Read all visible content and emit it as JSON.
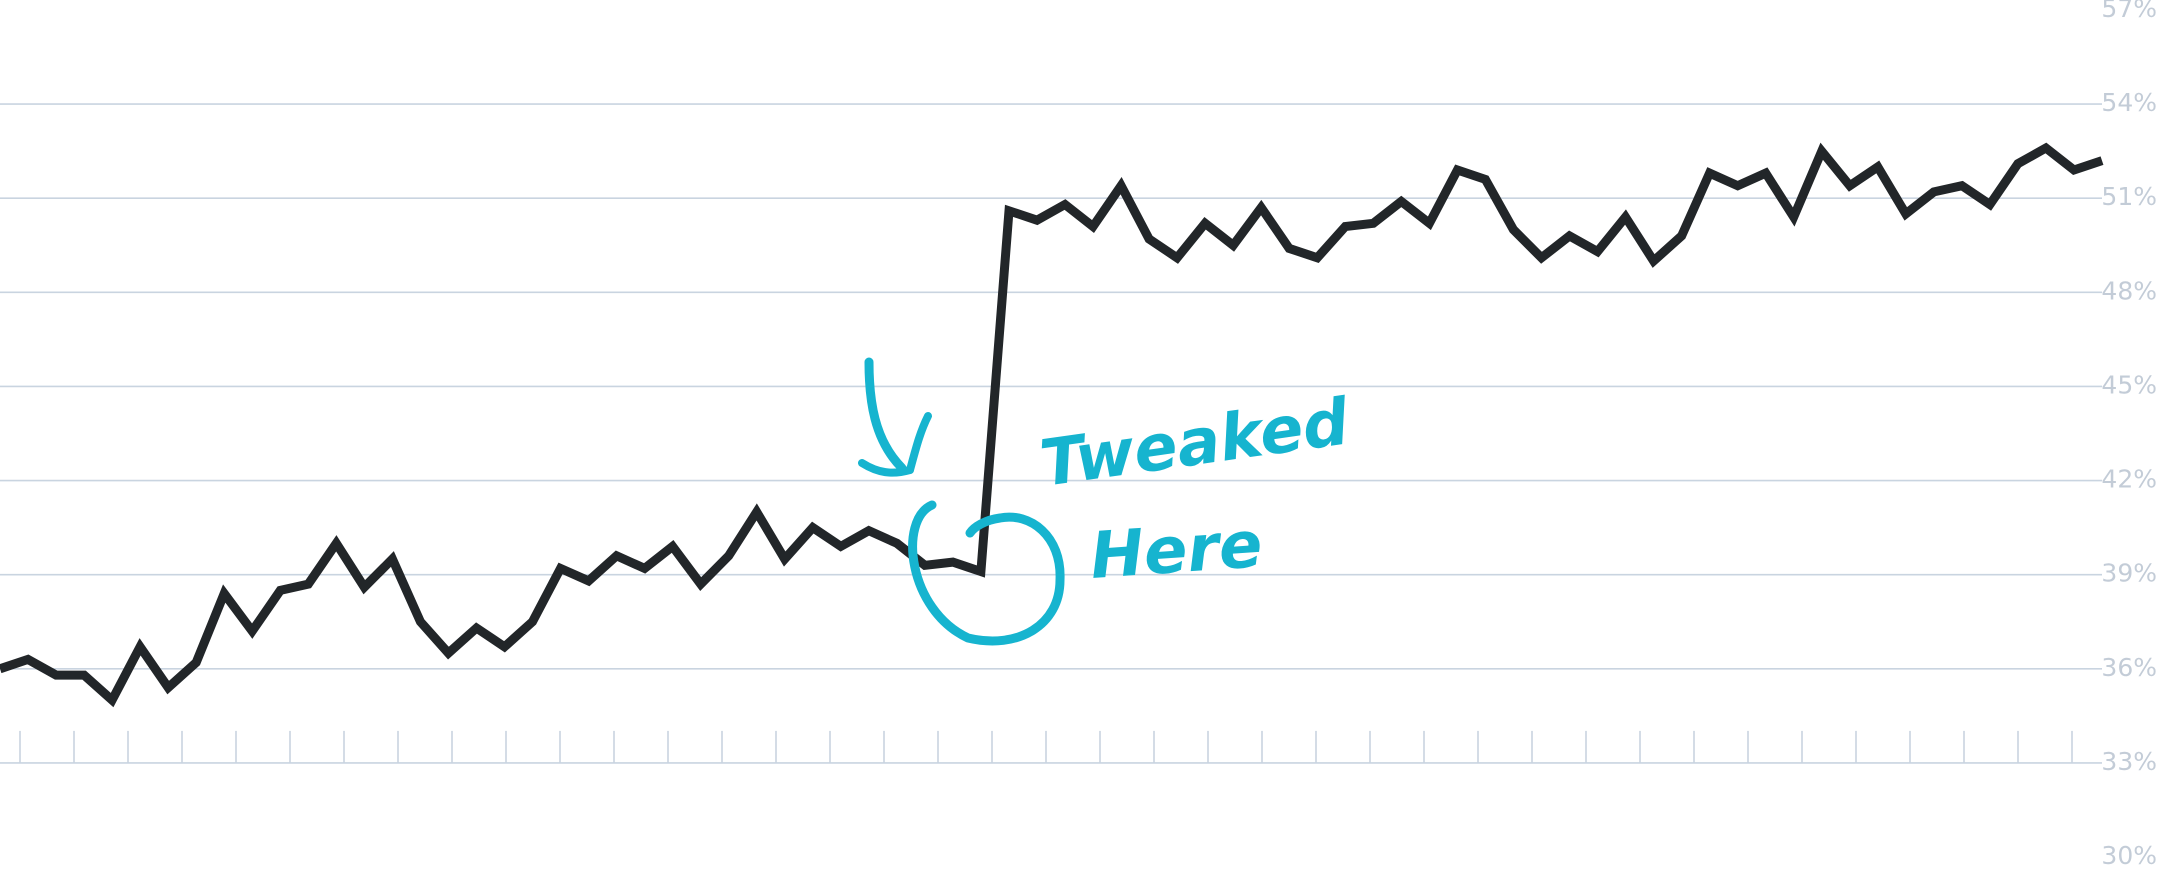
{
  "chart_data": {
    "type": "line",
    "title": "",
    "xlabel": "",
    "ylabel": "",
    "ylim": [
      30,
      57
    ],
    "y_ticks": [
      {
        "value": 30,
        "label": "30%"
      },
      {
        "value": 33,
        "label": "33%"
      },
      {
        "value": 36,
        "label": "36%"
      },
      {
        "value": 39,
        "label": "39%"
      },
      {
        "value": 42,
        "label": "42%"
      },
      {
        "value": 45,
        "label": "45%"
      },
      {
        "value": 48,
        "label": "48%"
      },
      {
        "value": 51,
        "label": "51%"
      },
      {
        "value": 54,
        "label": "54%"
      },
      {
        "value": 57,
        "label": "57%"
      }
    ],
    "axis_position": "right",
    "grid": true,
    "x_tick_count": 39,
    "series": [
      {
        "color": "#222629",
        "values": [
          36.0,
          36.3,
          35.8,
          35.8,
          35.0,
          36.7,
          35.4,
          36.2,
          38.4,
          37.2,
          38.5,
          38.7,
          40.0,
          38.6,
          39.5,
          37.5,
          36.5,
          37.3,
          36.7,
          37.5,
          39.2,
          38.8,
          39.6,
          39.2,
          39.9,
          38.7,
          39.6,
          41.0,
          39.5,
          40.5,
          39.9,
          40.4,
          40.0,
          39.3,
          39.4,
          39.1,
          50.6,
          50.3,
          50.8,
          50.1,
          51.4,
          49.7,
          49.1,
          50.2,
          49.5,
          50.7,
          49.4,
          49.1,
          50.1,
          50.2,
          50.9,
          50.2,
          51.9,
          51.6,
          50.0,
          49.1,
          49.8,
          49.3,
          50.4,
          49.0,
          49.8,
          51.8,
          51.4,
          51.8,
          50.4,
          52.5,
          51.4,
          52.0,
          50.5,
          51.2,
          51.4,
          50.8,
          52.1,
          52.6,
          51.9,
          52.2
        ]
      }
    ],
    "annotations": [
      {
        "text_lines": [
          "Tweaked",
          "Here"
        ],
        "color": "#16b4cf",
        "target_index": 34
      }
    ]
  }
}
